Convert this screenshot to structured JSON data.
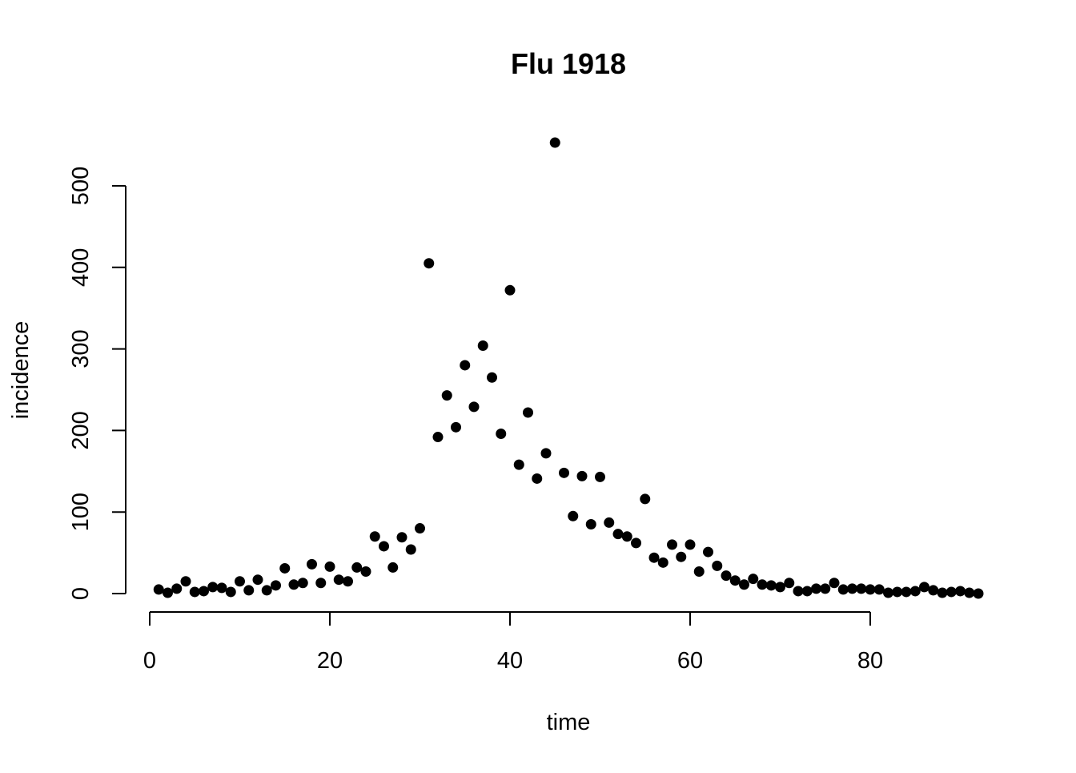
{
  "chart_data": {
    "type": "scatter",
    "title": "Flu 1918",
    "xlabel": "time",
    "ylabel": "incidence",
    "xlim": [
      0,
      92
    ],
    "ylim": [
      0,
      550
    ],
    "x_ticks": [
      0,
      20,
      40,
      60,
      80
    ],
    "y_ticks": [
      0,
      100,
      200,
      300,
      400,
      500
    ],
    "x_tick_labels": [
      "0",
      "20",
      "40",
      "60",
      "80"
    ],
    "y_tick_labels": [
      "0",
      "100",
      "200",
      "300",
      "400",
      "500"
    ],
    "grid": false,
    "legend": "none",
    "marker_color": "#000000",
    "x": [
      1,
      2,
      3,
      4,
      5,
      6,
      7,
      8,
      9,
      10,
      11,
      12,
      13,
      14,
      15,
      16,
      17,
      18,
      19,
      20,
      21,
      22,
      23,
      24,
      25,
      26,
      27,
      28,
      29,
      30,
      31,
      32,
      33,
      34,
      35,
      36,
      37,
      38,
      39,
      40,
      41,
      42,
      43,
      44,
      45,
      46,
      47,
      48,
      49,
      50,
      51,
      52,
      53,
      54,
      55,
      56,
      57,
      58,
      59,
      60,
      61,
      62,
      63,
      64,
      65,
      66,
      67,
      68,
      69,
      70,
      71,
      72,
      73,
      74,
      75,
      76,
      77,
      78,
      79,
      80,
      81,
      82,
      83,
      84,
      85,
      86,
      87,
      88,
      89,
      90,
      91,
      92
    ],
    "y": [
      5,
      1,
      6,
      15,
      2,
      3,
      8,
      7,
      2,
      15,
      4,
      17,
      4,
      10,
      31,
      11,
      13,
      36,
      13,
      33,
      17,
      15,
      32,
      27,
      70,
      58,
      32,
      69,
      54,
      80,
      405,
      192,
      243,
      204,
      280,
      229,
      304,
      265,
      196,
      372,
      158,
      222,
      141,
      172,
      553,
      148,
      95,
      144,
      85,
      143,
      87,
      73,
      70,
      62,
      116,
      44,
      38,
      60,
      45,
      60,
      27,
      51,
      34,
      22,
      16,
      11,
      18,
      11,
      10,
      8,
      13,
      3,
      3,
      6,
      6,
      13,
      5,
      6,
      6,
      5,
      5,
      1,
      2,
      2,
      3,
      8,
      4,
      1,
      2,
      3,
      1,
      0
    ]
  }
}
